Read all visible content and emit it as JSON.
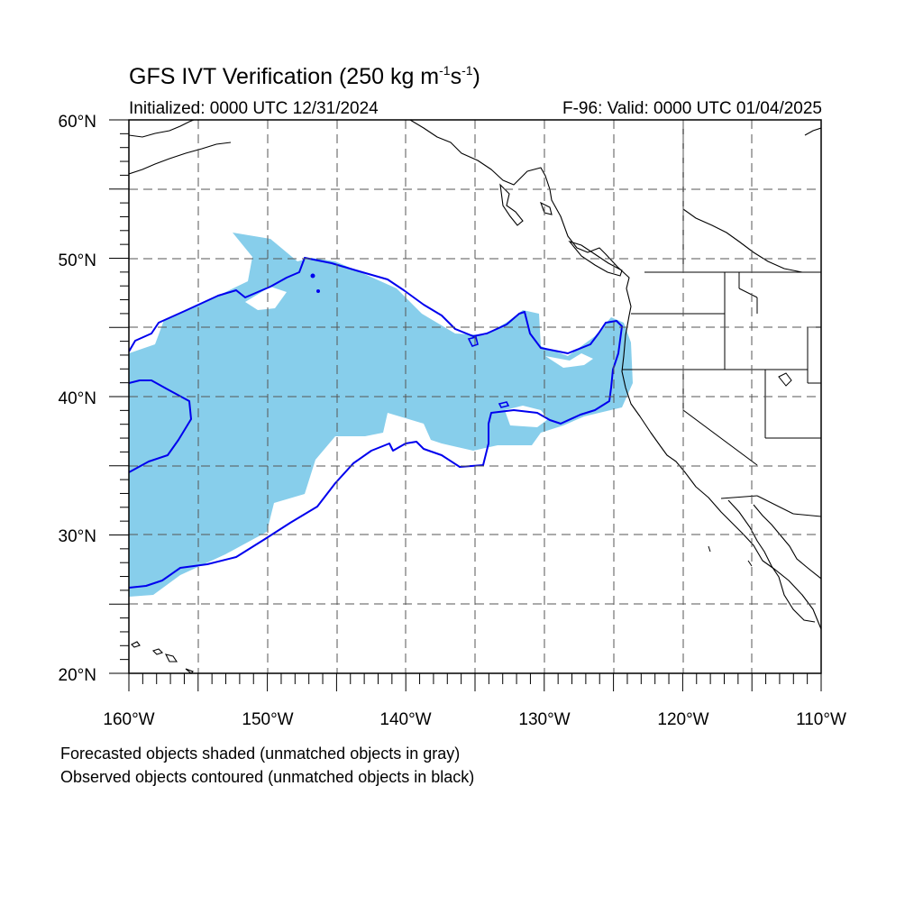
{
  "title": {
    "prefix": "GFS IVT Verification (250 kg m",
    "exp1": "-1",
    "mid": "s",
    "exp2": "-1",
    "suffix": ")"
  },
  "subtitle_left": "Initialized: 0000 UTC 12/31/2024",
  "subtitle_right": "F-96: Valid: 0000 UTC 01/04/2025",
  "axes": {
    "lat_labels": [
      "20°N",
      "30°N",
      "40°N",
      "50°N",
      "60°N"
    ],
    "lon_labels": [
      "160°W",
      "150°W",
      "140°W",
      "130°W",
      "120°W",
      "110°W"
    ],
    "lat_range": [
      20,
      60
    ],
    "lon_range": [
      -160,
      -110
    ],
    "grid": true
  },
  "notes": {
    "line1": "Forecasted objects shaded (unmatched objects in gray)",
    "line2": "Observed objects contoured (unmatched objects in black)"
  },
  "colors": {
    "forecast_fill": "#87ceeb",
    "observed_contour": "#0000ee",
    "coastline": "#000000",
    "grid": "#555555"
  }
}
